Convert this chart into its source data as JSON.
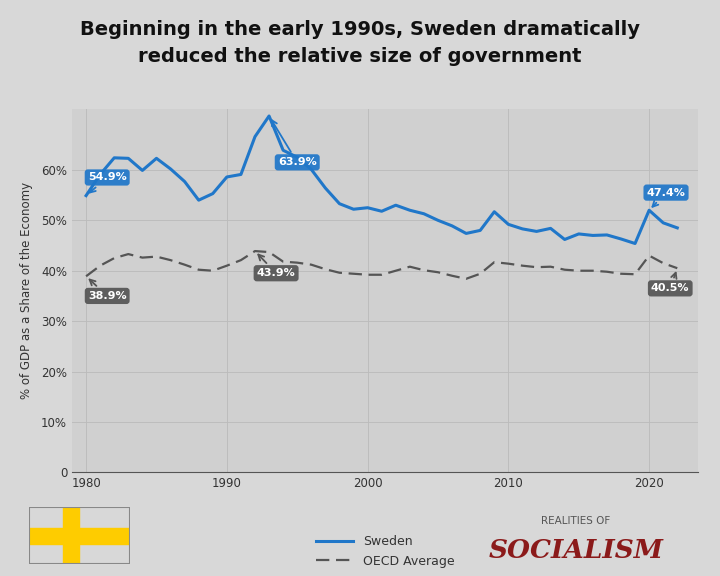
{
  "title_line1": "Beginning in the early 1990s, Sweden dramatically",
  "title_line2": "reduced the relative size of government",
  "ylabel": "% of GDP as a Share of the Economy",
  "background_color": "#d8d8d8",
  "plot_bg_color": "#d0d0d0",
  "grid_color": "#bbbbbb",
  "sweden_color": "#2077c9",
  "oecd_color": "#555555",
  "years": [
    1980,
    1981,
    1982,
    1983,
    1984,
    1985,
    1986,
    1987,
    1988,
    1989,
    1990,
    1991,
    1992,
    1993,
    1994,
    1995,
    1996,
    1997,
    1998,
    1999,
    2000,
    2001,
    2002,
    2003,
    2004,
    2005,
    2006,
    2007,
    2008,
    2009,
    2010,
    2011,
    2012,
    2013,
    2014,
    2015,
    2016,
    2017,
    2018,
    2019,
    2020,
    2021,
    2022
  ],
  "sweden": [
    54.9,
    59.1,
    62.4,
    62.3,
    59.9,
    62.3,
    60.2,
    57.7,
    54.0,
    55.3,
    58.6,
    59.1,
    66.6,
    70.7,
    63.9,
    62.5,
    60.1,
    56.4,
    53.3,
    52.2,
    52.5,
    51.8,
    53.0,
    52.0,
    51.3,
    50.0,
    48.9,
    47.4,
    48.0,
    51.7,
    49.2,
    48.3,
    47.8,
    48.4,
    46.2,
    47.3,
    47.0,
    47.1,
    46.3,
    45.4,
    52.0,
    49.5,
    48.5
  ],
  "oecd": [
    38.9,
    41.0,
    42.5,
    43.3,
    42.6,
    42.8,
    42.1,
    41.2,
    40.2,
    40.0,
    41.0,
    42.1,
    43.9,
    43.7,
    41.8,
    41.6,
    41.2,
    40.3,
    39.6,
    39.4,
    39.2,
    39.2,
    40.0,
    40.8,
    40.1,
    39.7,
    39.0,
    38.4,
    39.4,
    41.7,
    41.4,
    41.0,
    40.7,
    40.8,
    40.2,
    40.0,
    40.0,
    39.8,
    39.4,
    39.3,
    43.0,
    41.5,
    40.5
  ],
  "xlim": [
    1979,
    2023.5
  ],
  "ylim": [
    0,
    72
  ],
  "yticks": [
    0,
    10,
    20,
    30,
    40,
    50,
    60
  ],
  "ytick_labels": [
    "0",
    "10%",
    "20%",
    "30%",
    "40%",
    "50%",
    "60%"
  ],
  "xticks": [
    1980,
    1990,
    2000,
    2010,
    2020
  ],
  "title_fontsize": 14,
  "label_fontsize": 8.5,
  "tick_fontsize": 8.5,
  "flag_blue": "#006AA7",
  "flag_yellow": "#FECC00",
  "socialism_color": "#8B1A1A",
  "sweden_bubble_color": "#2077c9",
  "oecd_bubble_color": "#555555"
}
